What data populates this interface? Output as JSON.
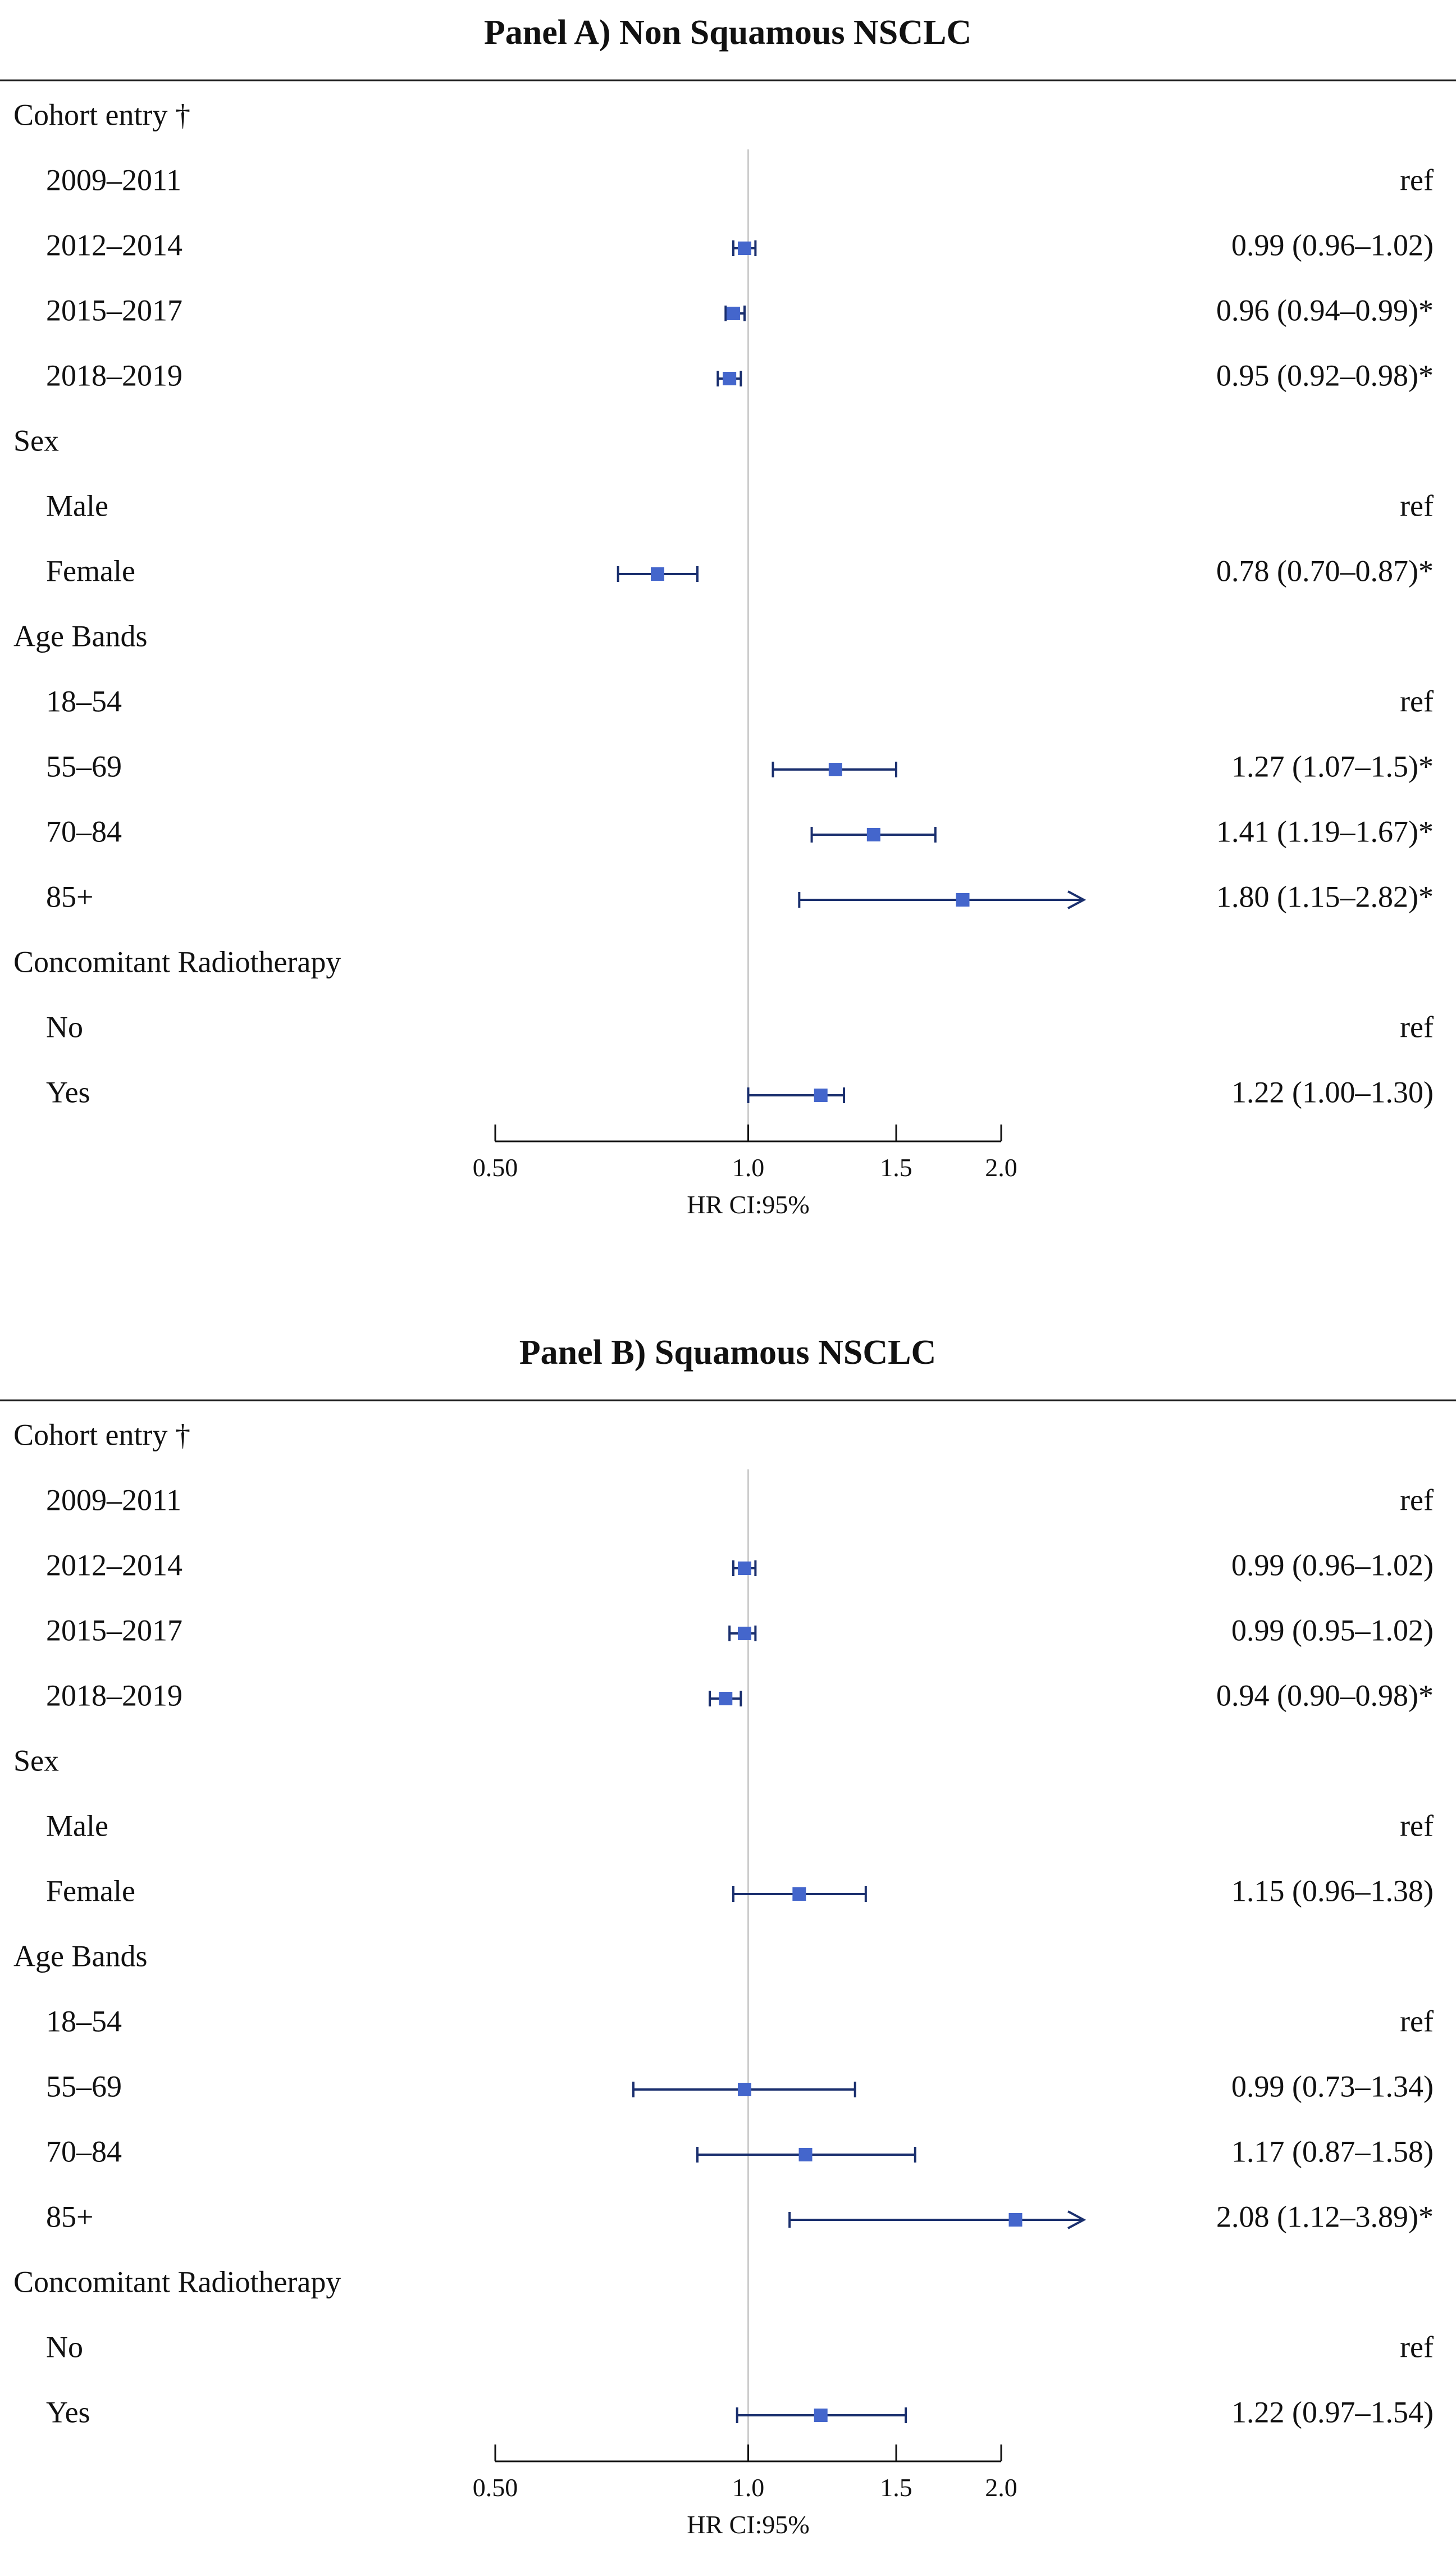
{
  "chart_data": [
    {
      "type": "forest",
      "title": "Panel A) Non Squamous NSCLC",
      "xlabel": "HR CI:95%",
      "scale": "log",
      "xlim": [
        0.5,
        2.0
      ],
      "reference_line": 1.0,
      "ticks": [
        0.5,
        1.0,
        1.5,
        2.0
      ],
      "tick_labels": [
        "0.50",
        "1.0",
        "1.5",
        "2.0"
      ],
      "grid": false,
      "point_color": "#4466cc",
      "line_color": "#1a2f6e",
      "rows": [
        {
          "label": "Cohort entry †",
          "kind": "header"
        },
        {
          "label": "2009–2011",
          "kind": "item",
          "text": "ref"
        },
        {
          "label": "2012–2014",
          "kind": "item",
          "est": 0.99,
          "lo": 0.96,
          "hi": 1.02,
          "text": "0.99 (0.96–1.02)"
        },
        {
          "label": "2015–2017",
          "kind": "item",
          "est": 0.96,
          "lo": 0.94,
          "hi": 0.99,
          "text": "0.96 (0.94–0.99)*"
        },
        {
          "label": "2018–2019",
          "kind": "item",
          "est": 0.95,
          "lo": 0.92,
          "hi": 0.98,
          "text": "0.95 (0.92–0.98)*"
        },
        {
          "label": "Sex",
          "kind": "header"
        },
        {
          "label": "Male",
          "kind": "item",
          "text": "ref"
        },
        {
          "label": "Female",
          "kind": "item",
          "est": 0.78,
          "lo": 0.7,
          "hi": 0.87,
          "text": "0.78 (0.70–0.87)*"
        },
        {
          "label": "Age Bands",
          "kind": "header"
        },
        {
          "label": "18–54",
          "kind": "item",
          "text": "ref"
        },
        {
          "label": "55–69",
          "kind": "item",
          "est": 1.27,
          "lo": 1.07,
          "hi": 1.5,
          "text": "1.27 (1.07–1.5)*"
        },
        {
          "label": "70–84",
          "kind": "item",
          "est": 1.41,
          "lo": 1.19,
          "hi": 1.67,
          "text": "1.41 (1.19–1.67)*"
        },
        {
          "label": "85+",
          "kind": "item",
          "est": 1.8,
          "lo": 1.15,
          "hi": 2.82,
          "text": "1.80 (1.15–2.82)*"
        },
        {
          "label": "Concomitant Radiotherapy",
          "kind": "header"
        },
        {
          "label": "No",
          "kind": "item",
          "text": "ref"
        },
        {
          "label": "Yes",
          "kind": "item",
          "est": 1.22,
          "lo": 1.0,
          "hi": 1.3,
          "text": "1.22 (1.00–1.30)"
        }
      ]
    },
    {
      "type": "forest",
      "title": "Panel B) Squamous NSCLC",
      "xlabel": "HR CI:95%",
      "scale": "log",
      "xlim": [
        0.5,
        2.0
      ],
      "reference_line": 1.0,
      "ticks": [
        0.5,
        1.0,
        1.5,
        2.0
      ],
      "tick_labels": [
        "0.50",
        "1.0",
        "1.5",
        "2.0"
      ],
      "grid": false,
      "point_color": "#4466cc",
      "line_color": "#1a2f6e",
      "rows": [
        {
          "label": "Cohort entry †",
          "kind": "header"
        },
        {
          "label": "2009–2011",
          "kind": "item",
          "text": "ref"
        },
        {
          "label": "2012–2014",
          "kind": "item",
          "est": 0.99,
          "lo": 0.96,
          "hi": 1.02,
          "text": "0.99 (0.96–1.02)"
        },
        {
          "label": "2015–2017",
          "kind": "item",
          "est": 0.99,
          "lo": 0.95,
          "hi": 1.02,
          "text": "0.99 (0.95–1.02)"
        },
        {
          "label": "2018–2019",
          "kind": "item",
          "est": 0.94,
          "lo": 0.9,
          "hi": 0.98,
          "text": "0.94 (0.90–0.98)*"
        },
        {
          "label": "Sex",
          "kind": "header"
        },
        {
          "label": "Male",
          "kind": "item",
          "text": "ref"
        },
        {
          "label": "Female",
          "kind": "item",
          "est": 1.15,
          "lo": 0.96,
          "hi": 1.38,
          "text": "1.15 (0.96–1.38)"
        },
        {
          "label": "Age Bands",
          "kind": "header"
        },
        {
          "label": "18–54",
          "kind": "item",
          "text": "ref"
        },
        {
          "label": "55–69",
          "kind": "item",
          "est": 0.99,
          "lo": 0.73,
          "hi": 1.34,
          "text": "0.99 (0.73–1.34)"
        },
        {
          "label": "70–84",
          "kind": "item",
          "est": 1.17,
          "lo": 0.87,
          "hi": 1.58,
          "text": "1.17 (0.87–1.58)"
        },
        {
          "label": "85+",
          "kind": "item",
          "est": 2.08,
          "lo": 1.12,
          "hi": 3.89,
          "text": "2.08 (1.12–3.89)*"
        },
        {
          "label": "Concomitant Radiotherapy",
          "kind": "header"
        },
        {
          "label": "No",
          "kind": "item",
          "text": "ref"
        },
        {
          "label": "Yes",
          "kind": "item",
          "est": 1.22,
          "lo": 0.97,
          "hi": 1.54,
          "text": "1.22 (0.97–1.54)"
        }
      ]
    }
  ]
}
